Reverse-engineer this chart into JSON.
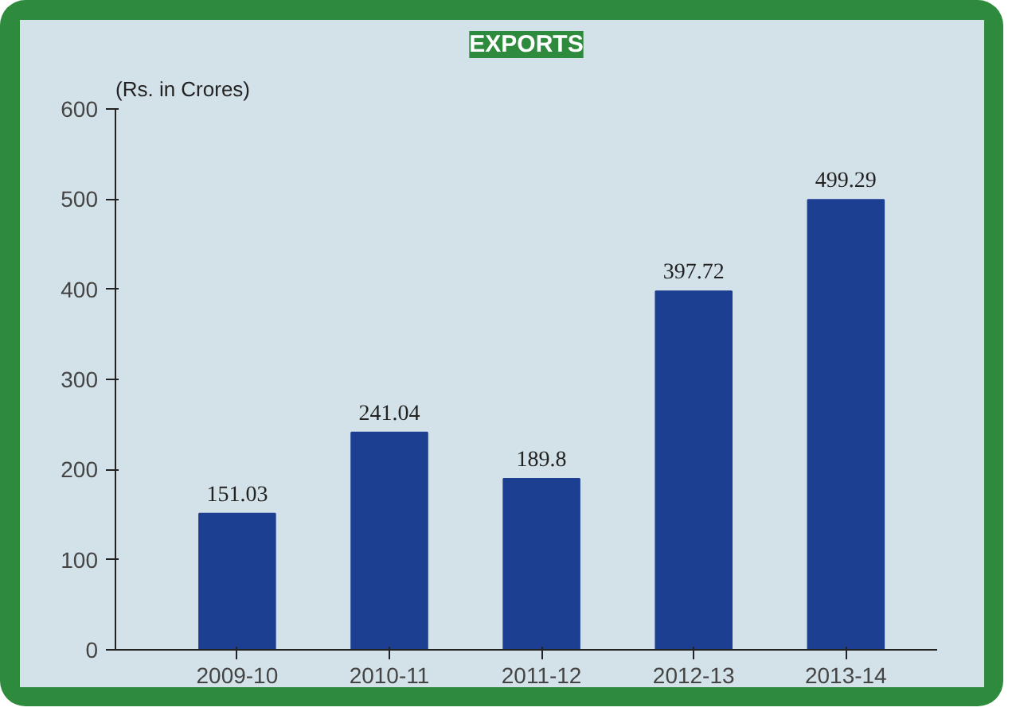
{
  "chart_data": {
    "type": "bar",
    "title": "EXPORTS",
    "ylabel": "(Rs. in Crores)",
    "categories": [
      "2009-10",
      "2010-11",
      "2011-12",
      "2012-13",
      "2013-14"
    ],
    "values": [
      151.03,
      241.04,
      189.8,
      397.72,
      499.29
    ],
    "color": "#1d3f91",
    "ylim": [
      0,
      600
    ],
    "yticks": [
      0,
      100,
      200,
      300,
      400,
      500,
      600
    ],
    "grid": false,
    "data_labels": true
  }
}
